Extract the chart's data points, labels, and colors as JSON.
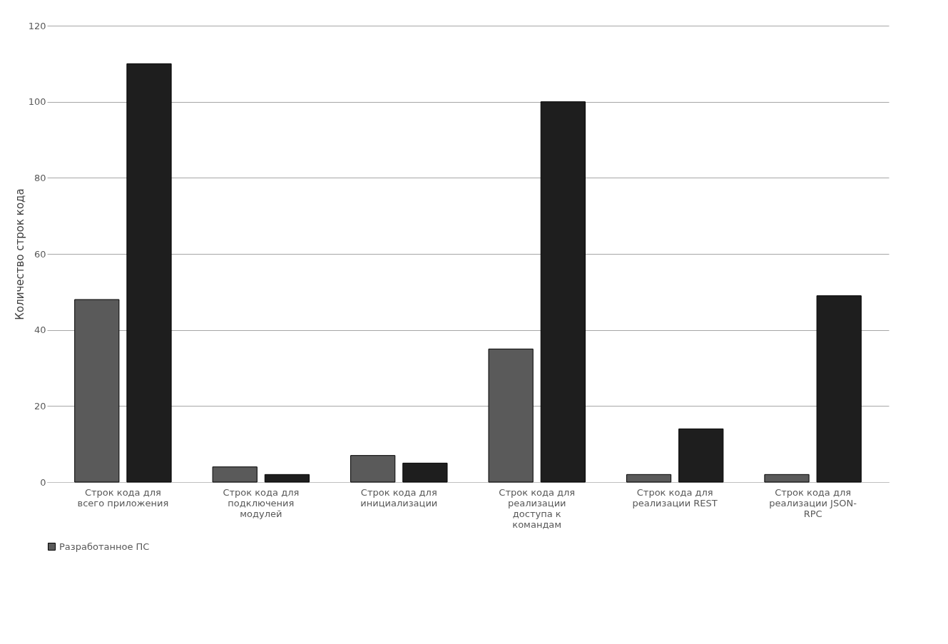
{
  "chart_data": {
    "type": "bar",
    "categories": [
      "Строк кода для всего приложения",
      "Строк кода для подключения модулей",
      "Строк кода для инициализации",
      "Строк кода для реализации доступа к командам",
      "Строк кода для реализации REST",
      "Строк кода для реализации JSON-RPC"
    ],
    "series": [
      {
        "name": "Разработанное ПС",
        "color": "#5a5a5a",
        "values": [
          48,
          4,
          7,
          35,
          2,
          2
        ]
      },
      {
        "color": "#1e1e1e",
        "values": [
          110,
          2,
          5,
          100,
          14,
          49
        ]
      }
    ],
    "ylabel": "Количество строк кода",
    "ylim": [
      0,
      120
    ],
    "yticks": [
      0,
      20,
      40,
      60,
      80,
      100,
      120
    ],
    "grid": "y",
    "legend": "bottom"
  }
}
